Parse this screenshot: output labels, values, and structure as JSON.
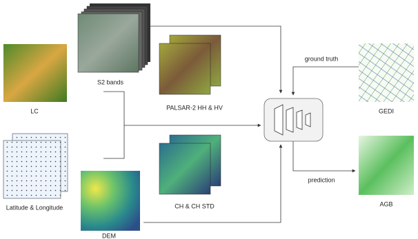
{
  "nodes": [
    {
      "label": "S2 bands"
    },
    {
      "label": "LC"
    },
    {
      "label": "PALSAR-2 HH & HV"
    },
    {
      "label": "GEDI"
    },
    {
      "label": "Latitude & Longitude"
    },
    {
      "label": "CH & CH STD"
    },
    {
      "label": "DEM"
    },
    {
      "label": "AGB"
    }
  ],
  "edges": [
    {
      "label": "ground truth"
    },
    {
      "label": "prediction"
    }
  ]
}
